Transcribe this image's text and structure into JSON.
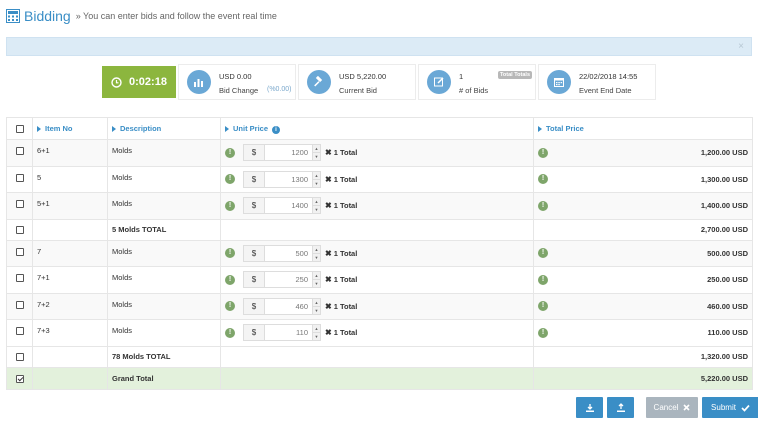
{
  "header": {
    "title": "Bidding",
    "subtitle": "» You can enter bids and follow the event real time"
  },
  "alert": {
    "close_glyph": "×"
  },
  "stats": {
    "timer": "0:02:18",
    "bid_change": {
      "value": "USD 0.00",
      "label": "Bid Change",
      "extra": "(%0.00)"
    },
    "current_bid": {
      "value": "USD 5,220.00",
      "label": "Current Bid"
    },
    "bids": {
      "value": "1",
      "label": "# of Bids",
      "badge": "Total Totals"
    },
    "end_date": {
      "value": "22/02/2018 14:55",
      "label": "Event End Date"
    }
  },
  "table": {
    "headers": {
      "item_no": "Item No",
      "description": "Description",
      "unit_price": "Unit Price",
      "total_price": "Total Price"
    },
    "currency_symbol": "$",
    "qty_label": "1 Total",
    "rows": [
      {
        "item_no": "6+1",
        "description": "Molds",
        "unit_price": "1200",
        "total": "1,200.00 USD"
      },
      {
        "item_no": "5",
        "description": "Molds",
        "unit_price": "1300",
        "total": "1,300.00 USD"
      },
      {
        "item_no": "5+1",
        "description": "Molds",
        "unit_price": "1400",
        "total": "1,400.00 USD"
      }
    ],
    "subtotal_1": {
      "label": "5 Molds TOTAL",
      "total": "2,700.00 USD"
    },
    "rows2": [
      {
        "item_no": "7",
        "description": "Molds",
        "unit_price": "500",
        "total": "500.00 USD"
      },
      {
        "item_no": "7+1",
        "description": "Molds",
        "unit_price": "250",
        "total": "250.00 USD"
      },
      {
        "item_no": "7+2",
        "description": "Molds",
        "unit_price": "460",
        "total": "460.00 USD"
      },
      {
        "item_no": "7+3",
        "description": "Molds",
        "unit_price": "110",
        "total": "110.00 USD"
      }
    ],
    "subtotal_2": {
      "label": "78 Molds TOTAL",
      "total": "1,320.00 USD"
    },
    "grand_total": {
      "label": "Grand Total",
      "total": "5,220.00 USD"
    }
  },
  "buttons": {
    "cancel": "Cancel",
    "submit": "Submit"
  },
  "colors": {
    "accent": "#3a8ec6",
    "timer_bg": "#8cb63e",
    "grand_total_bg": "#e3f1dc",
    "cancel_bg": "#aab5be"
  },
  "icons": {
    "header": "calculator-icon",
    "timer": "clock-icon",
    "bid_change": "chart-icon",
    "current_bid": "gavel-icon",
    "bids": "edit-icon",
    "end_date": "calendar-icon",
    "download": "download-icon",
    "upload": "upload-icon",
    "cancel": "close-icon",
    "submit": "check-icon"
  }
}
